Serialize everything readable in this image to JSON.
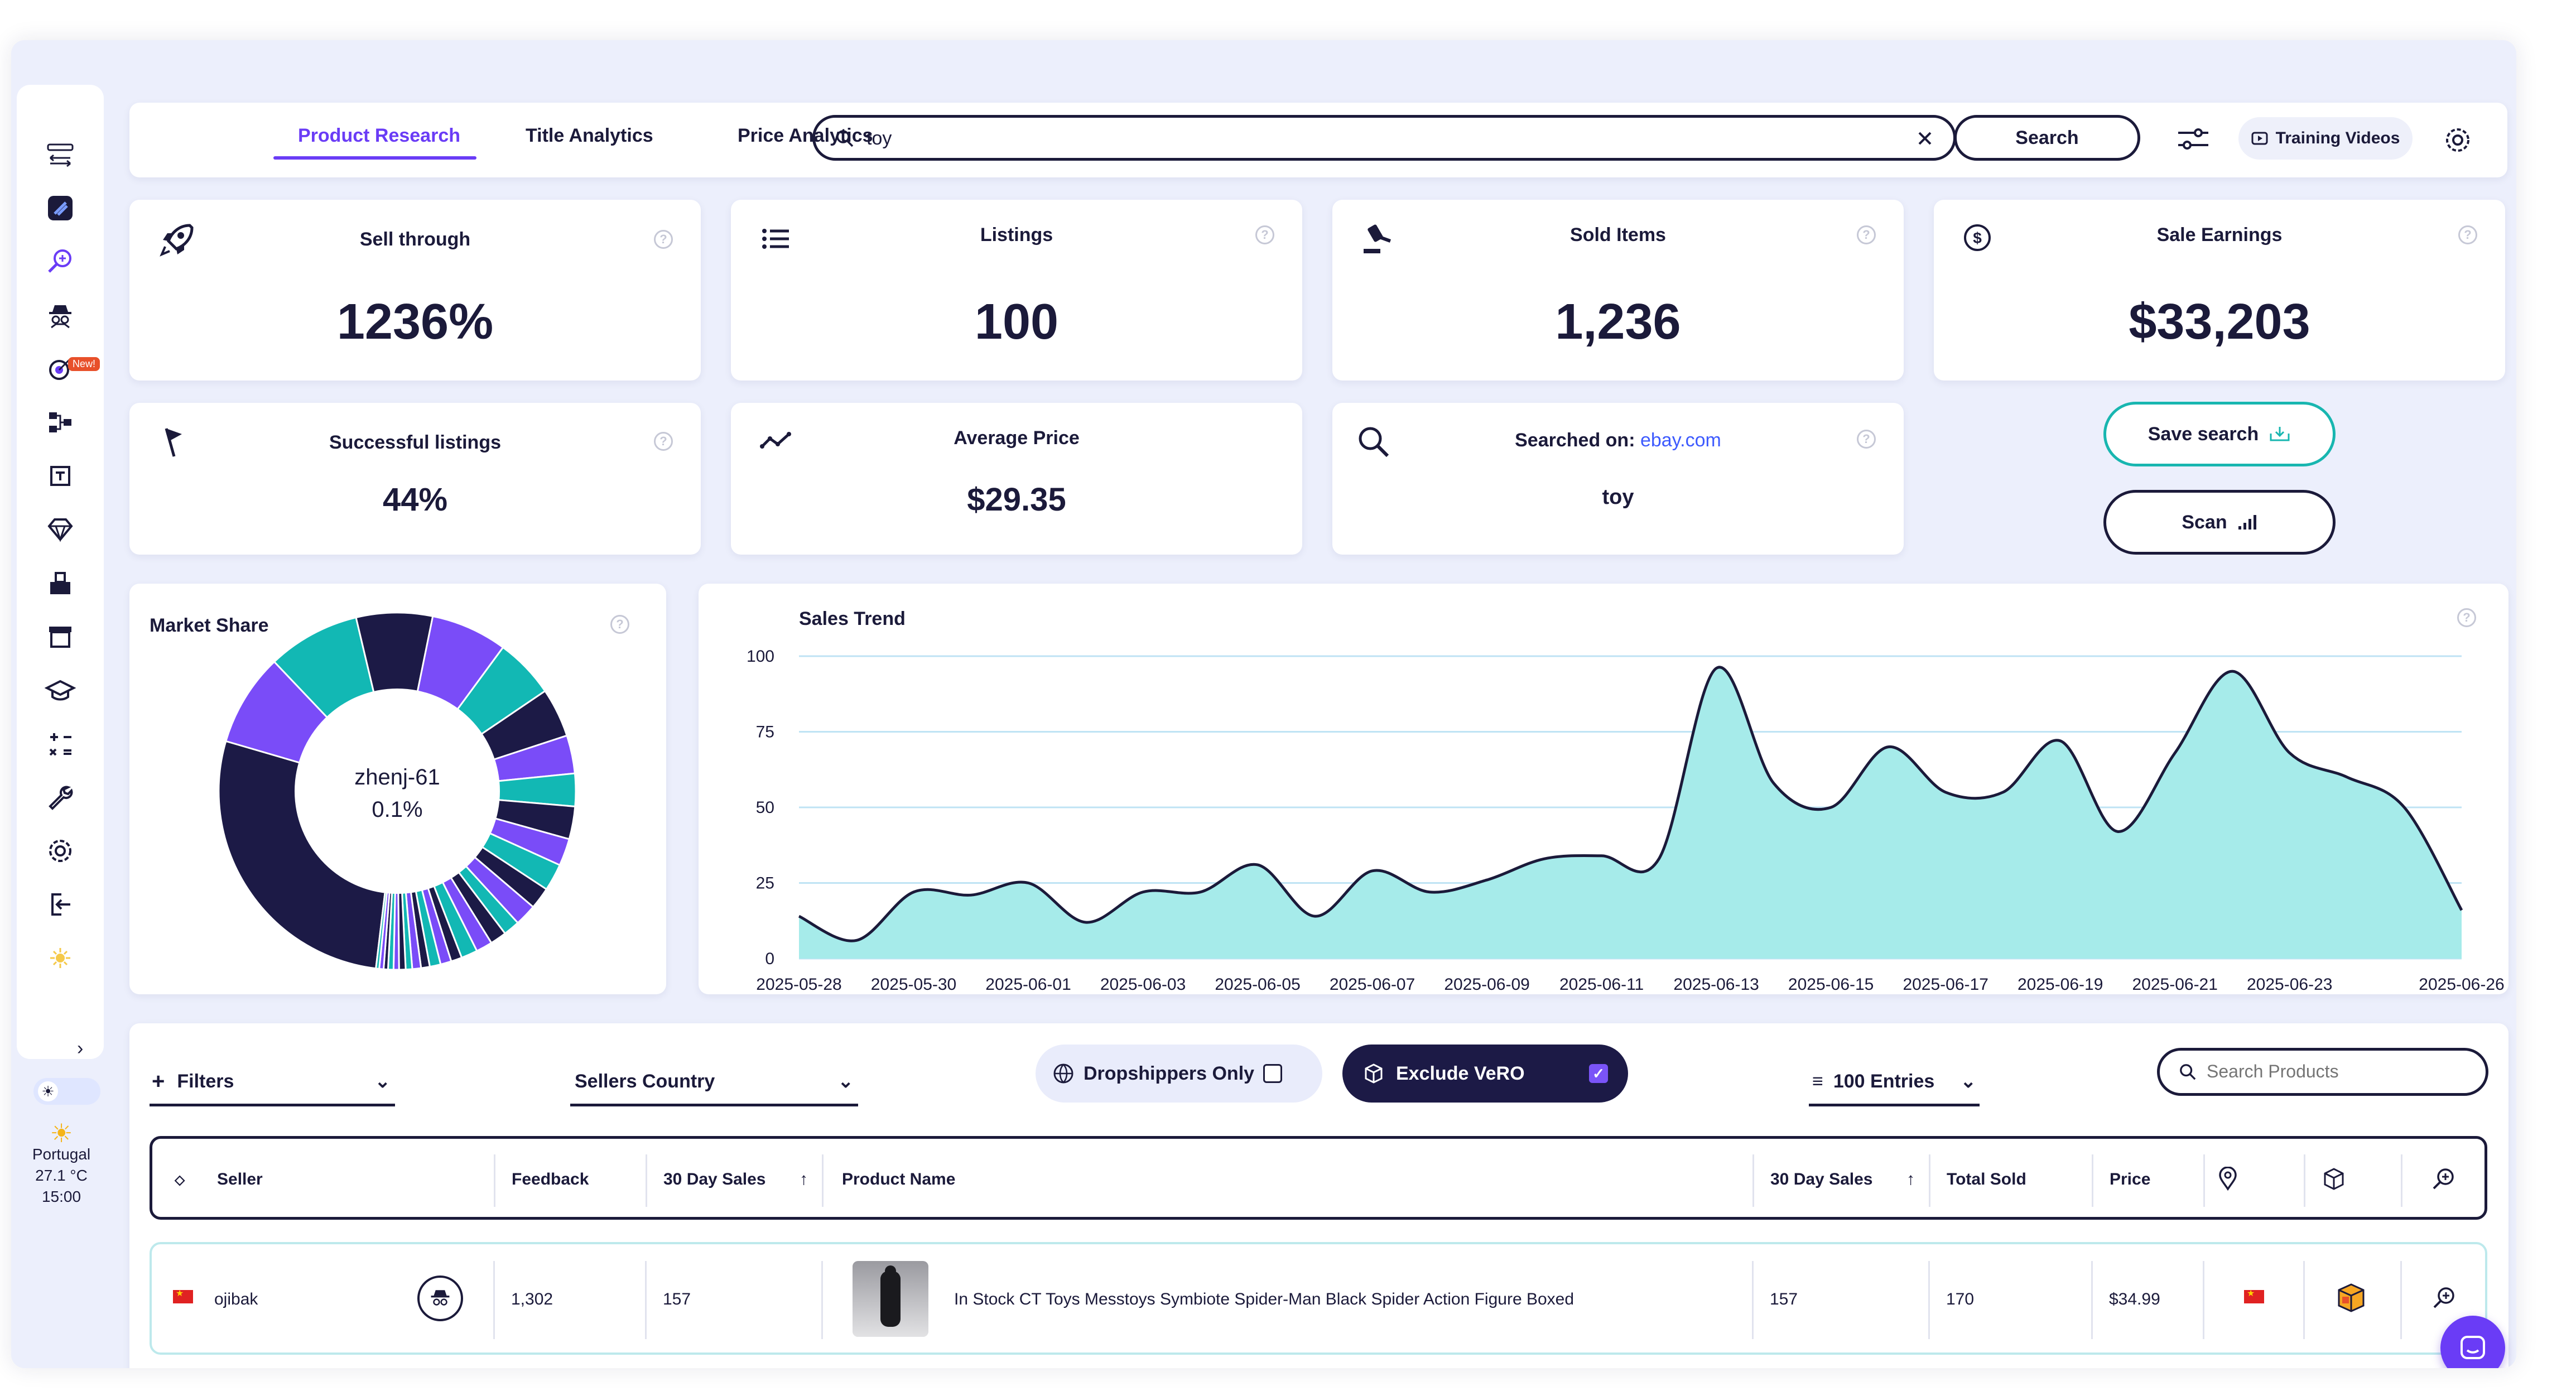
{
  "nav": {
    "tabs": [
      {
        "label": "Product Research",
        "active": true
      },
      {
        "label": "Title Analytics",
        "active": false
      },
      {
        "label": "Price Analytics",
        "active": false
      }
    ],
    "search_value": "toy",
    "search_button": "Search",
    "training_label": "Training Videos"
  },
  "sidebar": {
    "new_badge": "New!",
    "weather": {
      "location": "Portugal",
      "temperature": "27.1 °C",
      "time": "15:00"
    }
  },
  "stats": {
    "sell_through": {
      "title": "Sell through",
      "value": "1236%"
    },
    "listings": {
      "title": "Listings",
      "value": "100"
    },
    "sold_items": {
      "title": "Sold Items",
      "value": "1,236"
    },
    "sale_earnings": {
      "title": "Sale Earnings",
      "value": "$33,203"
    },
    "successful_listings": {
      "title": "Successful listings",
      "value": "44%"
    },
    "average_price": {
      "title": "Average Price",
      "value": "$29.35"
    },
    "searched_on": {
      "title": "Searched on:",
      "site": "ebay.com",
      "query": "toy"
    }
  },
  "actions": {
    "save_search": "Save search",
    "scan": "Scan"
  },
  "market_share": {
    "title": "Market Share",
    "center_name": "zhenj-61",
    "center_value": "0.1%"
  },
  "sales_trend": {
    "title": "Sales Trend"
  },
  "filters": {
    "filters_label": "Filters",
    "sellers_country": "Sellers Country",
    "dropshippers": "Dropshippers Only",
    "exclude_vero": "Exclude VeRO",
    "entries": "100 Entries",
    "search_products_placeholder": "Search Products"
  },
  "table": {
    "headers": {
      "seller": "Seller",
      "feedback": "Feedback",
      "sales30_left": "30 Day Sales",
      "product_name": "Product Name",
      "sales30_right": "30 Day Sales",
      "total_sold": "Total Sold",
      "price": "Price"
    },
    "rows": [
      {
        "seller": "ojibak",
        "feedback": "1,302",
        "sales30": "157",
        "product_name": "In Stock CT Toys Messtoys Symbiote Spider-Man Black Spider Action Figure Boxed",
        "sales30_right": "157",
        "total_sold": "170",
        "price": "$34.99"
      }
    ]
  },
  "colors": {
    "accent": "#6a3cf6",
    "navy": "#1b1a3a",
    "teal": "#18b6b0",
    "area_fill": "#a6ebea",
    "market_purple": "#7a4cf8"
  },
  "chart_data": [
    {
      "type": "area",
      "title": "Sales Trend",
      "xlabel": "",
      "ylabel": "",
      "ylim": [
        0,
        100
      ],
      "yticks": [
        0,
        25,
        50,
        75,
        100
      ],
      "grid": true,
      "x_tick_labels": [
        "2025-05-28",
        "2025-05-30",
        "2025-06-01",
        "2025-06-03",
        "2025-06-05",
        "2025-06-07",
        "2025-06-09",
        "2025-06-11",
        "2025-06-13",
        "2025-06-15",
        "2025-06-17",
        "2025-06-19",
        "2025-06-21",
        "2025-06-23",
        "2025-06-26"
      ],
      "x": [
        "2025-05-28",
        "2025-05-29",
        "2025-05-30",
        "2025-05-31",
        "2025-06-01",
        "2025-06-02",
        "2025-06-03",
        "2025-06-04",
        "2025-06-05",
        "2025-06-06",
        "2025-06-07",
        "2025-06-08",
        "2025-06-09",
        "2025-06-10",
        "2025-06-11",
        "2025-06-12",
        "2025-06-13",
        "2025-06-14",
        "2025-06-15",
        "2025-06-16",
        "2025-06-17",
        "2025-06-18",
        "2025-06-19",
        "2025-06-20",
        "2025-06-21",
        "2025-06-22",
        "2025-06-23",
        "2025-06-24",
        "2025-06-25",
        "2025-06-26"
      ],
      "series": [
        {
          "values": [
            14,
            6,
            22,
            21,
            25,
            12,
            22,
            22,
            31,
            14,
            29,
            22,
            26,
            33,
            34,
            33,
            96,
            58,
            50,
            70,
            55,
            55,
            72,
            42,
            68,
            95,
            68,
            60,
            50,
            16
          ]
        }
      ]
    },
    {
      "type": "pie",
      "title": "Market Share",
      "donut": true,
      "center_label": {
        "name": "zhenj-61",
        "value": "0.1%"
      },
      "slices": [
        {
          "color": "#1c1a46",
          "value": 28
        },
        {
          "color": "#7a4cf8",
          "value": 8.5
        },
        {
          "color": "#12b8b4",
          "value": 8.5
        },
        {
          "color": "#1c1a46",
          "value": 7
        },
        {
          "color": "#7a4cf8",
          "value": 7
        },
        {
          "color": "#12b8b4",
          "value": 5.5
        },
        {
          "color": "#1c1a46",
          "value": 4.5
        },
        {
          "color": "#7a4cf8",
          "value": 3.5
        },
        {
          "color": "#12b8b4",
          "value": 3
        },
        {
          "color": "#1c1a46",
          "value": 3
        },
        {
          "color": "#7a4cf8",
          "value": 2.5
        },
        {
          "color": "#12b8b4",
          "value": 2.5
        },
        {
          "color": "#1c1a46",
          "value": 2
        },
        {
          "color": "#7a4cf8",
          "value": 2
        },
        {
          "color": "#12b8b4",
          "value": 1.5
        },
        {
          "color": "#1c1a46",
          "value": 1.5
        },
        {
          "color": "#7a4cf8",
          "value": 1.5
        },
        {
          "color": "#12b8b4",
          "value": 1.5
        },
        {
          "color": "#1c1a46",
          "value": 1
        },
        {
          "color": "#7a4cf8",
          "value": 1
        },
        {
          "color": "#12b8b4",
          "value": 1
        },
        {
          "color": "#1c1a46",
          "value": 0.8
        },
        {
          "color": "#7a4cf8",
          "value": 0.8
        },
        {
          "color": "#12b8b4",
          "value": 0.6
        },
        {
          "color": "#1c1a46",
          "value": 0.6
        },
        {
          "color": "#7a4cf8",
          "value": 0.5
        },
        {
          "color": "#12b8b4",
          "value": 0.5
        },
        {
          "color": "#1c1a46",
          "value": 0.4
        },
        {
          "color": "#7a4cf8",
          "value": 0.4
        },
        {
          "color": "#12b8b4",
          "value": 0.3
        }
      ]
    }
  ]
}
